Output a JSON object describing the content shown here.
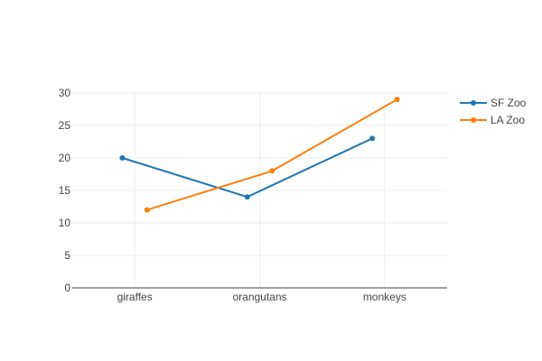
{
  "chart_data": {
    "type": "line",
    "categories": [
      "giraffes",
      "orangutans",
      "monkeys"
    ],
    "series": [
      {
        "name": "SF Zoo",
        "values": [
          20,
          14,
          23
        ],
        "color": "#1f77b4"
      },
      {
        "name": "LA Zoo",
        "values": [
          12,
          18,
          29
        ],
        "color": "#ff7f0e"
      }
    ],
    "ylim": [
      0,
      30
    ],
    "yticks": [
      0,
      5,
      10,
      15,
      20,
      25,
      30
    ],
    "grid": true,
    "legend_placement": "top-right"
  }
}
